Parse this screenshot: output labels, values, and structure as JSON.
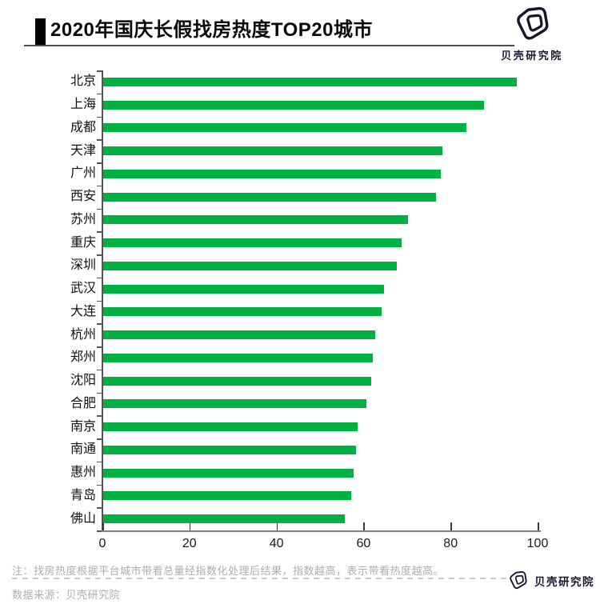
{
  "header": {
    "title": "2020年国庆长假找房热度TOP20城市",
    "logo_text": "贝壳研究院"
  },
  "chart_data": {
    "type": "bar",
    "orientation": "horizontal",
    "title": "2020年国庆长假找房热度TOP20城市",
    "categories": [
      "北京",
      "上海",
      "成都",
      "天津",
      "广州",
      "西安",
      "苏州",
      "重庆",
      "深圳",
      "武汉",
      "大连",
      "杭州",
      "郑州",
      "沈阳",
      "合肥",
      "南京",
      "南通",
      "惠州",
      "青岛",
      "佛山"
    ],
    "values": [
      95,
      87.5,
      83.5,
      78,
      77.5,
      76.5,
      70,
      68.5,
      67.5,
      64.5,
      64,
      62.5,
      62,
      61.5,
      60.5,
      58.5,
      58,
      57.5,
      57,
      55.5
    ],
    "x_ticks": [
      0,
      20,
      40,
      60,
      80,
      100
    ],
    "xlim": [
      0,
      100
    ],
    "xlabel": "",
    "ylabel": "",
    "grid": false,
    "legend": "none",
    "bar_color": "#00b142"
  },
  "footer": {
    "note": "注：找房热度根据平台城市带看总量经指数化处理后结果，指数越高，表示带看热度越高。",
    "source": "数据来源：贝壳研究院",
    "logo_text": "贝壳研究院"
  },
  "colors": {
    "bar_green": "#00b142",
    "logo_navy": "#15172d",
    "note_gray": "#adadad",
    "axis_gray": "#808080"
  }
}
